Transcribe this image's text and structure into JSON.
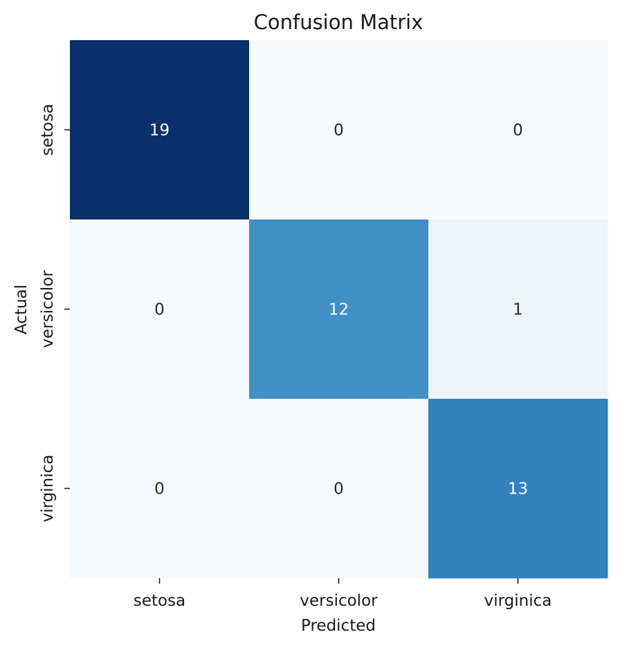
{
  "chart_data": {
    "type": "heatmap",
    "title": "Confusion Matrix",
    "xlabel": "Predicted",
    "ylabel": "Actual",
    "x_categories": [
      "setosa",
      "versicolor",
      "virginica"
    ],
    "y_categories": [
      "setosa",
      "versicolor",
      "virginica"
    ],
    "values": [
      [
        19,
        0,
        0
      ],
      [
        0,
        12,
        1
      ],
      [
        0,
        0,
        13
      ]
    ],
    "colormap": "Blues",
    "value_range": [
      0,
      19
    ],
    "colorbar": false,
    "grid": false
  }
}
